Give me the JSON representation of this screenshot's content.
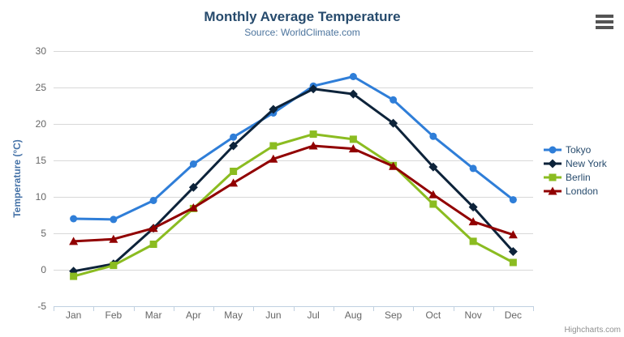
{
  "chart": {
    "title": "Monthly Average Temperature",
    "subtitle": "Source: WorldClimate.com"
  },
  "chart_data": {
    "type": "line",
    "title": "Monthly Average Temperature",
    "subtitle": "Source: WorldClimate.com",
    "xlabel": "",
    "ylabel": "Temperature (°C)",
    "ylim": [
      -5,
      30
    ],
    "yticks": [
      -5,
      0,
      5,
      10,
      15,
      20,
      25,
      30
    ],
    "grid": true,
    "legend_position": "right",
    "categories": [
      "Jan",
      "Feb",
      "Mar",
      "Apr",
      "May",
      "Jun",
      "Jul",
      "Aug",
      "Sep",
      "Oct",
      "Nov",
      "Dec"
    ],
    "series": [
      {
        "name": "Tokyo",
        "color": "#2f7ed8",
        "marker": "circle",
        "values": [
          7.0,
          6.9,
          9.5,
          14.5,
          18.2,
          21.5,
          25.2,
          26.5,
          23.3,
          18.3,
          13.9,
          9.6
        ]
      },
      {
        "name": "New York",
        "color": "#0d233a",
        "marker": "diamond",
        "values": [
          -0.2,
          0.8,
          5.7,
          11.3,
          17.0,
          22.0,
          24.8,
          24.1,
          20.1,
          14.1,
          8.6,
          2.5
        ]
      },
      {
        "name": "Berlin",
        "color": "#8bbc21",
        "marker": "square",
        "values": [
          -0.9,
          0.6,
          3.5,
          8.4,
          13.5,
          17.0,
          18.6,
          17.9,
          14.3,
          9.0,
          3.9,
          1.0
        ]
      },
      {
        "name": "London",
        "color": "#910000",
        "marker": "triangle",
        "values": [
          3.9,
          4.2,
          5.7,
          8.5,
          11.9,
          15.2,
          17.0,
          16.6,
          14.2,
          10.3,
          6.6,
          4.8
        ]
      }
    ]
  },
  "icons": {
    "export_menu": "hamburger-icon"
  },
  "credits": {
    "label": "Highcharts.com"
  },
  "colors": {
    "title": "#274b6d",
    "subtitle": "#4d759e",
    "axis_label": "#666666",
    "y_axis_title": "#4572a7",
    "legend_text": "#274b6d",
    "gridline": "#d8d8d8",
    "axis_line": "#c0d0e0",
    "credits": "#909090",
    "export_icon": "#545454"
  }
}
